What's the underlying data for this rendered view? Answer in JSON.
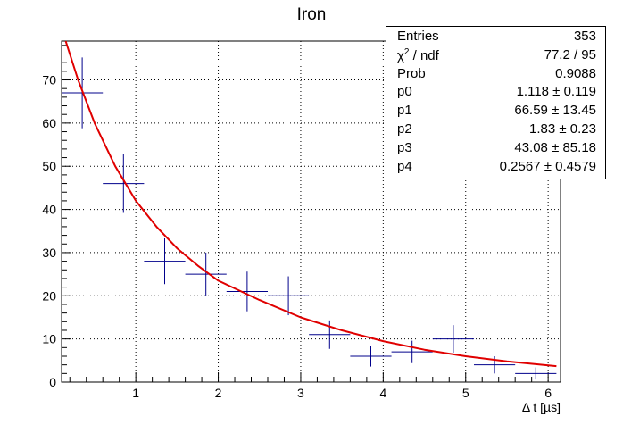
{
  "title": "Iron",
  "stats": {
    "rows": [
      {
        "key": "Entries",
        "value": "353"
      },
      {
        "key_main": "χ",
        "key_sup": "2",
        "key_rest": " / ndf",
        "value": "77.2 / 95"
      },
      {
        "key": "Prob",
        "value": "0.9088"
      },
      {
        "key": "p0",
        "value": "1.118 ± 0.119"
      },
      {
        "key": "p1",
        "value": "66.59 ± 13.45"
      },
      {
        "key": "p2",
        "value": "1.83 ± 0.23"
      },
      {
        "key": "p3",
        "value": "43.08 ± 85.18"
      },
      {
        "key": "p4",
        "value": "0.2567 ± 0.4579"
      }
    ]
  },
  "colors": {
    "data": "#00008b",
    "fit": "#e00000",
    "grid": "#000000",
    "frame": "#000000"
  },
  "chart_data": {
    "type": "scatter",
    "title": "Iron",
    "xlabel": "Δ t [µs]",
    "ylabel": "",
    "xlim": [
      0.1,
      6.15
    ],
    "ylim": [
      0,
      79
    ],
    "xticks": [
      1,
      2,
      3,
      4,
      5,
      6
    ],
    "yticks": [
      0,
      10,
      20,
      30,
      40,
      50,
      60,
      70
    ],
    "grid": true,
    "series": [
      {
        "kind": "histogram-errorbars",
        "x": [
          0.35,
          0.85,
          1.35,
          1.85,
          2.35,
          2.85,
          3.35,
          3.85,
          4.35,
          4.85,
          5.35,
          5.85
        ],
        "xerr": 0.25,
        "y": [
          67,
          46,
          28,
          25,
          21,
          20,
          11,
          6,
          7,
          10,
          4,
          2
        ],
        "yerr": [
          8.2,
          6.8,
          5.3,
          5.0,
          4.6,
          4.5,
          3.3,
          2.4,
          2.6,
          3.2,
          2.0,
          1.4
        ]
      },
      {
        "kind": "fit-curve",
        "x": [
          0.15,
          0.3,
          0.5,
          0.75,
          1.0,
          1.25,
          1.5,
          1.75,
          2.0,
          2.5,
          3.0,
          3.5,
          4.0,
          4.5,
          5.0,
          5.5,
          6.1
        ],
        "y": [
          79,
          70,
          60,
          50,
          42,
          36,
          31,
          27,
          23.5,
          19,
          15,
          12,
          9.5,
          7.5,
          6,
          4.8,
          3.7
        ]
      }
    ]
  }
}
